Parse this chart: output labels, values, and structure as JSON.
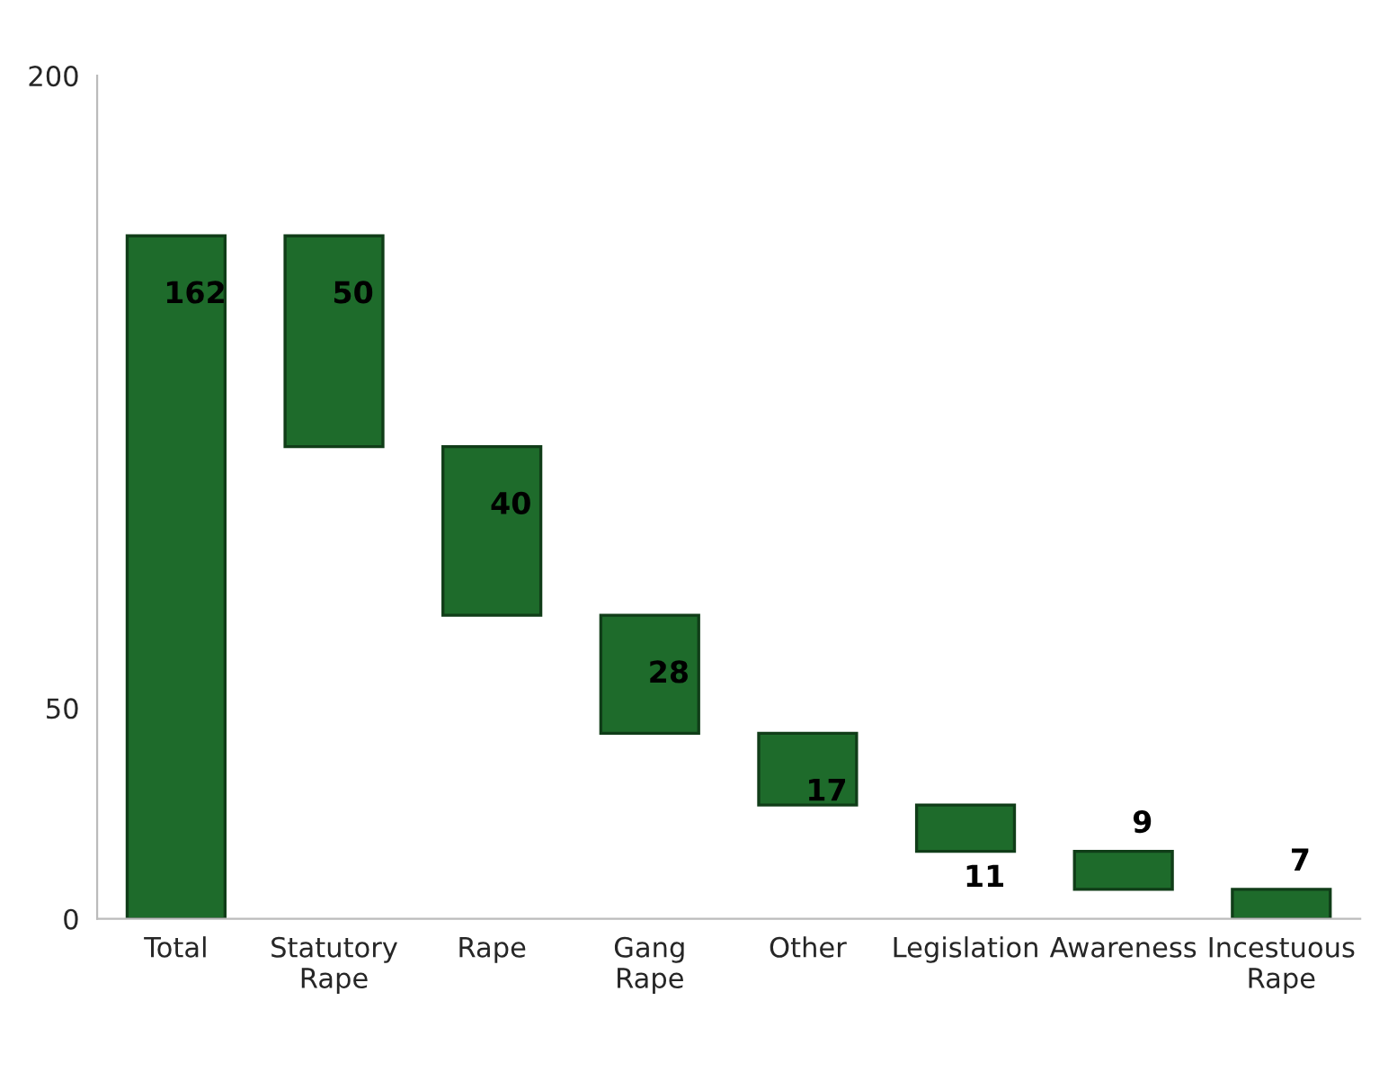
{
  "chart_data": {
    "type": "bar",
    "categories": [
      "Total",
      "Statutory Rape",
      "Rape",
      "Gang Rape",
      "Other",
      "Legislation",
      "Awareness",
      "Incestuous Rape"
    ],
    "values": [
      162,
      50,
      40,
      28,
      17,
      11,
      9,
      7
    ],
    "base": [
      0,
      112,
      72,
      44,
      27,
      16,
      7,
      0
    ],
    "color": "#1e6b2b",
    "ylim": [
      0,
      200
    ],
    "yticks": [
      0,
      50,
      200
    ],
    "data_labels": true,
    "grid": false
  }
}
